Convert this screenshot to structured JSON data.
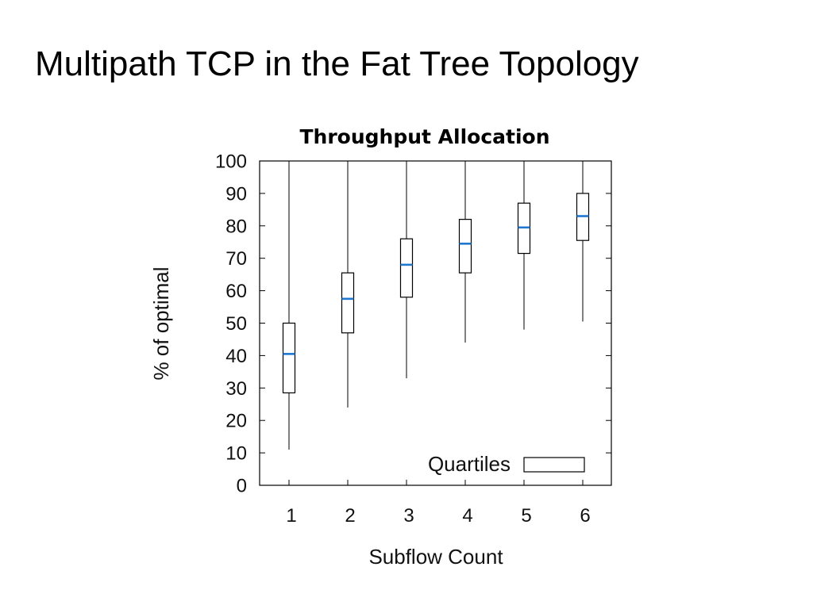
{
  "slide": {
    "title": "Multipath TCP in the Fat Tree Topology"
  },
  "chart_data": {
    "type": "box",
    "title": "Throughput Allocation",
    "xlabel": "Subflow Count",
    "ylabel": "% of optimal",
    "categories": [
      "1",
      "2",
      "3",
      "4",
      "5",
      "6"
    ],
    "ylim": [
      0,
      100
    ],
    "yticks": [
      0,
      10,
      20,
      30,
      40,
      50,
      60,
      70,
      80,
      90,
      100
    ],
    "legend": {
      "label": "Quartiles",
      "position": "bottom-right"
    },
    "median_color": "#1f77d0",
    "boxes": [
      {
        "category": "1",
        "min": 11,
        "q1": 28.5,
        "median": 40.5,
        "q3": 50,
        "max": 100
      },
      {
        "category": "2",
        "min": 24,
        "q1": 47,
        "median": 57.5,
        "q3": 65.5,
        "max": 100
      },
      {
        "category": "3",
        "min": 33,
        "q1": 58,
        "median": 68,
        "q3": 76,
        "max": 100
      },
      {
        "category": "4",
        "min": 44,
        "q1": 65.5,
        "median": 74.5,
        "q3": 82,
        "max": 100
      },
      {
        "category": "5",
        "min": 48,
        "q1": 71.5,
        "median": 79.5,
        "q3": 87,
        "max": 100
      },
      {
        "category": "6",
        "min": 50.5,
        "q1": 75.5,
        "median": 83,
        "q3": 90,
        "max": 100
      }
    ]
  }
}
